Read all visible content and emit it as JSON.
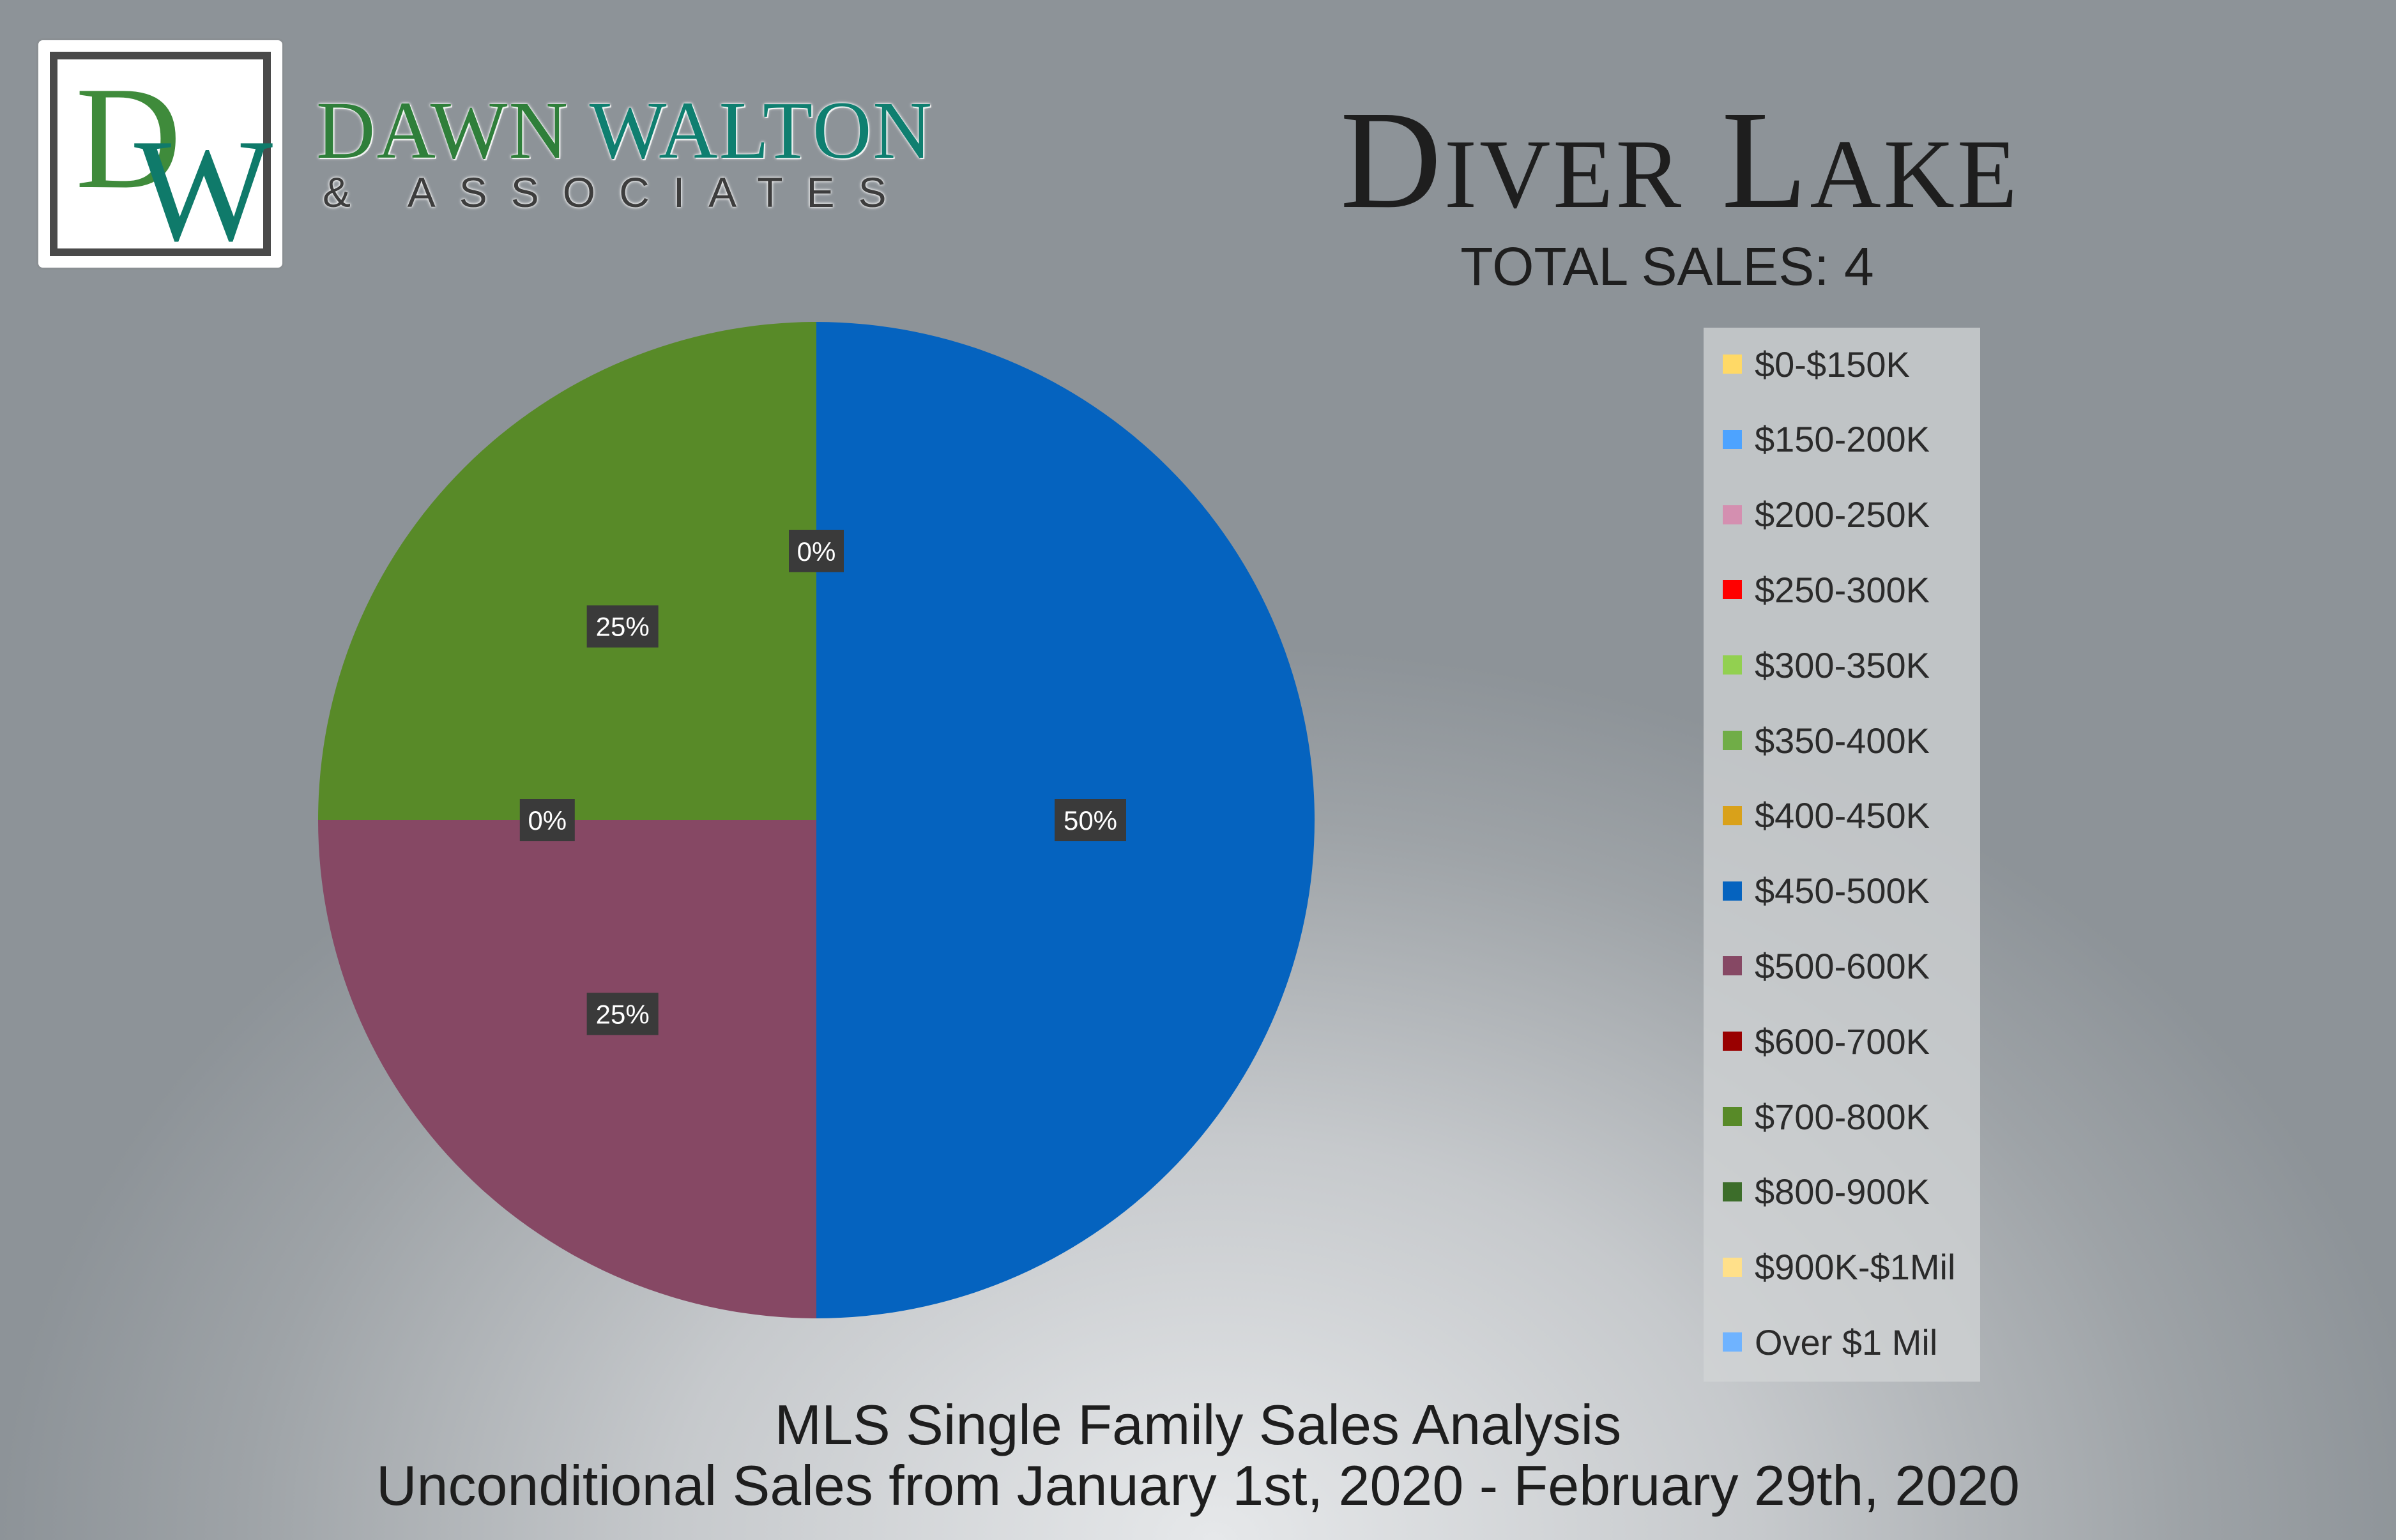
{
  "brand": {
    "logo_letters": "DW",
    "name_part1": "DAWN ",
    "name_part2": "WALTON",
    "subline": "& ASSOCIATES"
  },
  "header": {
    "title": "Diver Lake",
    "total_sales": "TOTAL SALES: 4"
  },
  "footer": {
    "line1": "MLS Single Family Sales Analysis",
    "line2": "Unconditional Sales from January 1st, 2020 - February 29th, 2020"
  },
  "chart_data": {
    "type": "pie",
    "title": "Diver Lake",
    "legend_position": "right",
    "categories": [
      "$0-$150K",
      "$150-200K",
      "$200-250K",
      "$250-300K",
      "$300-350K",
      "$350-400K",
      "$400-450K",
      "$450-500K",
      "$500-600K",
      "$600-700K",
      "$700-800K",
      "$800-900K",
      "$900K-$1Mil",
      "Over $1 Mil"
    ],
    "colors": [
      "#ffd966",
      "#4da3ff",
      "#d48fb0",
      "#ff0000",
      "#92d050",
      "#70ad47",
      "#d9a11a",
      "#0563bf",
      "#864864",
      "#990000",
      "#588a28",
      "#3c6d2a",
      "#ffe08a",
      "#6fb3ff"
    ],
    "values": [
      0,
      0,
      0,
      0,
      0,
      0,
      0,
      2,
      1,
      0,
      1,
      0,
      0,
      0
    ],
    "data_labels": [
      {
        "category": "$450-500K",
        "text": "50%"
      },
      {
        "category": "$500-600K",
        "text": "25%"
      },
      {
        "category": "$600-700K",
        "text": "0%"
      },
      {
        "category": "$700-800K",
        "text": "25%"
      },
      {
        "category": "$800-900K",
        "text": "0%"
      }
    ]
  }
}
